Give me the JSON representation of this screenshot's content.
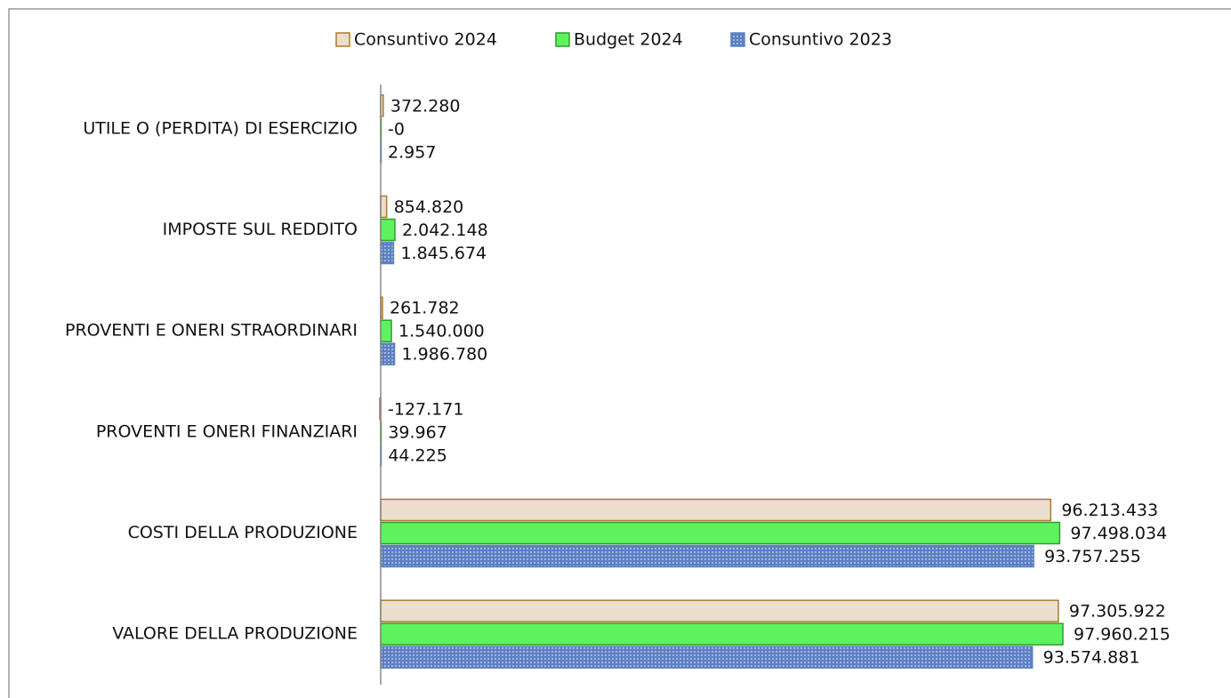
{
  "chart_data": {
    "type": "bar",
    "orientation": "horizontal",
    "categories": [
      "UTILE O (PERDITA) DI ESERCIZIO",
      "IMPOSTE SUL REDDITO",
      "PROVENTI E ONERI STRAORDINARI",
      "PROVENTI E ONERI FINANZIARI",
      "COSTI DELLA PRODUZIONE",
      "VALORE DELLA PRODUZIONE"
    ],
    "series": [
      {
        "name": "Consuntivo 2024",
        "color": "#e9dfcc",
        "stroke": "#b07a2a",
        "values": [
          372280,
          854820,
          261782,
          -127171,
          96213433,
          97305922
        ],
        "value_labels": [
          "372.280",
          "854.820",
          "261.782",
          "-127.171",
          "96.213.433",
          "97.305.922"
        ]
      },
      {
        "name": "Budget 2024",
        "color": "#5ef35e",
        "stroke": "#2f9e2f",
        "values": [
          0,
          2042148,
          1540000,
          39967,
          97498034,
          97960215
        ],
        "value_labels": [
          "-0",
          "2.042.148",
          "1.540.000",
          "39.967",
          "97.498.034",
          "97.960.215"
        ]
      },
      {
        "name": "Consuntivo 2023",
        "color": "#5d7fc3",
        "stroke": "#5d7fc3",
        "values": [
          2957,
          1845674,
          1986780,
          44225,
          93757255,
          93574881
        ],
        "value_labels": [
          "2.957",
          "1.845.674",
          "1.986.780",
          "44.225",
          "93.757.255",
          "93.574.881"
        ]
      }
    ],
    "legend": "top"
  }
}
